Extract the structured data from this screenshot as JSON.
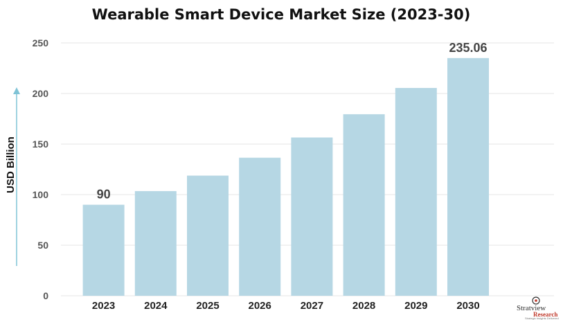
{
  "chart_data": {
    "type": "bar",
    "title": "Wearable Smart Device Market Size (2023-30)",
    "ylabel": "USD Billion",
    "xlabel": "",
    "categories": [
      "2023",
      "2024",
      "2025",
      "2026",
      "2027",
      "2028",
      "2029",
      "2030"
    ],
    "values": [
      90,
      103.5,
      118.8,
      136.5,
      156.5,
      179.5,
      205.5,
      235.06
    ],
    "data_labels": [
      {
        "category": "2023",
        "text": "90"
      },
      {
        "category": "2030",
        "text": "235.06"
      }
    ],
    "ylim": [
      0,
      250
    ],
    "yticks": [
      "0",
      "50",
      "100",
      "150",
      "200",
      "250"
    ],
    "grid": true,
    "bar_color": "#b6d7e4",
    "grid_color": "#e4e4e4",
    "arrow_color": "#7fc3d6"
  },
  "logo": {
    "top_text": "Stratview",
    "bottom_text": "Research",
    "tagline": "Strategic Insights Delivered"
  }
}
